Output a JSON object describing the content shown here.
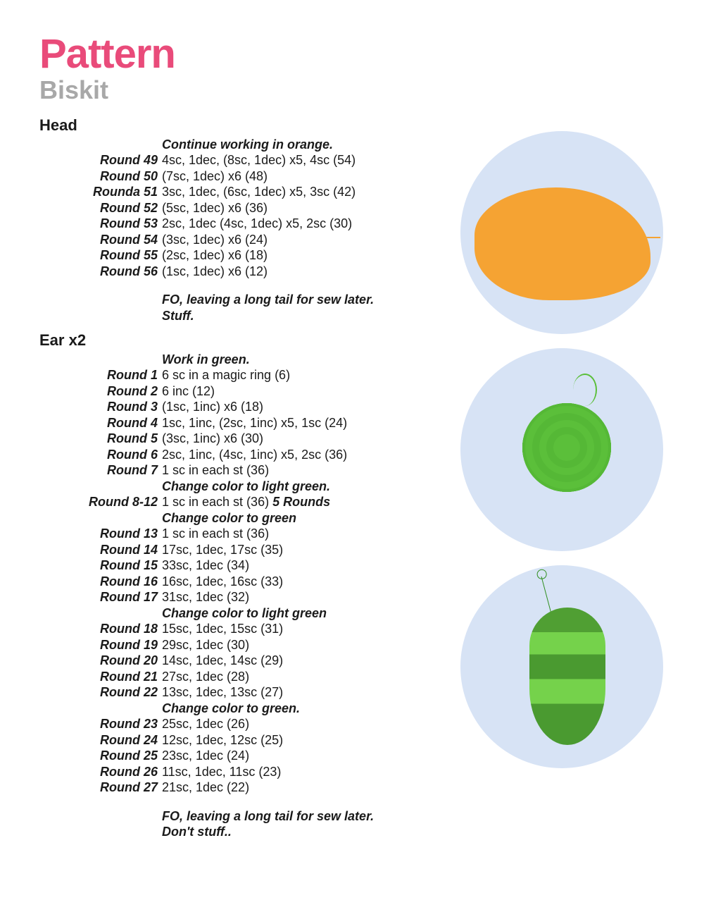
{
  "title": {
    "main": "Pattern",
    "sub": "Biskit"
  },
  "head": {
    "heading": "Head",
    "intro": "Continue working in orange.",
    "rounds": [
      {
        "label": "Round 49",
        "text": "4sc, 1dec, (8sc, 1dec) x5, 4sc (54)"
      },
      {
        "label": "Round 50",
        "text": "(7sc, 1dec) x6 (48)"
      },
      {
        "label": "Rounda 51",
        "text": "3sc, 1dec, (6sc, 1dec) x5, 3sc (42)"
      },
      {
        "label": "Round 52",
        "text": "(5sc, 1dec) x6 (36)"
      },
      {
        "label": "Round 53",
        "text": "2sc, 1dec (4sc, 1dec) x5, 2sc (30)"
      },
      {
        "label": "Round 54",
        "text": "(3sc, 1dec) x6 (24)"
      },
      {
        "label": "Round 55",
        "text": "(2sc, 1dec) x6 (18)"
      },
      {
        "label": "Round 56",
        "text": "(1sc, 1dec) x6 (12)"
      }
    ],
    "outro1": "FO, leaving a long tail for sew later.",
    "outro2": "Stuff."
  },
  "ear": {
    "heading": "Ear x2",
    "intro": "Work in green.",
    "blocks": [
      {
        "type": "round",
        "label": "Round 1",
        "text": "6 sc in a magic ring (6)"
      },
      {
        "type": "round",
        "label": "Round 2",
        "text": "6 inc (12)"
      },
      {
        "type": "round",
        "label": "Round 3",
        "text": "(1sc, 1inc) x6 (18)"
      },
      {
        "type": "round",
        "label": "Round 4",
        "text": "1sc, 1inc, (2sc, 1inc) x5, 1sc (24)"
      },
      {
        "type": "round",
        "label": "Round 5",
        "text": "(3sc, 1inc) x6 (30)"
      },
      {
        "type": "round",
        "label": "Round 6",
        "text": "2sc, 1inc, (4sc, 1inc) x5, 2sc (36)"
      },
      {
        "type": "round",
        "label": "Round 7",
        "text": "1 sc in each st (36)"
      },
      {
        "type": "note",
        "text": "Change color to light green."
      },
      {
        "type": "round",
        "label": "Round 8-12",
        "text": "1 sc in each st (36) ",
        "extra": "5 Rounds"
      },
      {
        "type": "note",
        "text": "Change color to green"
      },
      {
        "type": "round",
        "label": "Round 13",
        "text": "1 sc in each st (36)"
      },
      {
        "type": "round",
        "label": "Round 14",
        "text": "17sc, 1dec, 17sc (35)"
      },
      {
        "type": "round",
        "label": "Round 15",
        "text": "33sc, 1dec (34)"
      },
      {
        "type": "round",
        "label": "Round 16",
        "text": "16sc, 1dec, 16sc (33)"
      },
      {
        "type": "round",
        "label": "Round 17",
        "text": "31sc, 1dec (32)"
      },
      {
        "type": "note",
        "text": "Change color to light green"
      },
      {
        "type": "round",
        "label": "Round 18",
        "text": "15sc, 1dec, 15sc (31)"
      },
      {
        "type": "round",
        "label": "Round 19",
        "text": "29sc, 1dec (30)"
      },
      {
        "type": "round",
        "label": "Round 20",
        "text": "14sc, 1dec, 14sc (29)"
      },
      {
        "type": "round",
        "label": "Round 21",
        "text": "27sc, 1dec (28)"
      },
      {
        "type": "round",
        "label": "Round 22",
        "text": "13sc, 1dec, 13sc (27)"
      },
      {
        "type": "note",
        "text": "Change color to green."
      },
      {
        "type": "round",
        "label": "Round 23",
        "text": "25sc, 1dec (26)"
      },
      {
        "type": "round",
        "label": "Round 24",
        "text": "12sc, 1dec, 12sc (25)"
      },
      {
        "type": "round",
        "label": "Round 25",
        "text": "23sc, 1dec (24)"
      },
      {
        "type": "round",
        "label": "Round 26",
        "text": "11sc, 1dec, 11sc (23)"
      },
      {
        "type": "round",
        "label": "Round 27",
        "text": "21sc, 1dec (22)"
      }
    ],
    "outro1": "FO, leaving a long tail for sew later.",
    "outro2": "Don't stuff.."
  },
  "colors": {
    "title_main": "#e94b7a",
    "title_sub": "#a8a8a8",
    "text": "#1a1a1a",
    "circle_bg": "#d7e3f5",
    "orange": "#f5a333",
    "green_dark": "#4a9a30",
    "green_light": "#75d24b"
  }
}
